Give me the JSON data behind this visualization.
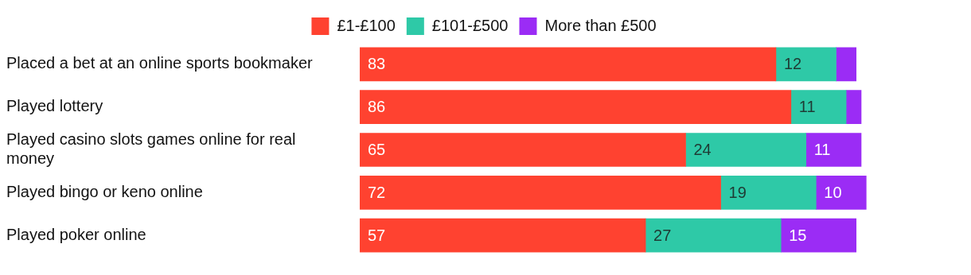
{
  "chart_data": {
    "type": "bar",
    "orientation": "horizontal",
    "stacked": true,
    "legend": "top",
    "categories": [
      "Placed a bet at an online sports bookmaker",
      "Played lottery",
      "Played casino slots games online for real money",
      "Played bingo or keno online",
      "Played poker online"
    ],
    "series": [
      {
        "name": "£1-£100",
        "color": "#ff4230",
        "values": [
          83,
          86,
          65,
          72,
          57
        ],
        "value_labels": [
          "83",
          "86",
          "65",
          "72",
          "57"
        ]
      },
      {
        "name": "£101-£500",
        "color": "#2ec9a7",
        "values": [
          12,
          11,
          24,
          19,
          27
        ],
        "value_labels": [
          "12",
          "11",
          "24",
          "19",
          "27"
        ]
      },
      {
        "name": "More than £500",
        "color": "#9b2cf5",
        "values": [
          4,
          3,
          11,
          10,
          15
        ],
        "value_labels": [
          null,
          null,
          "11",
          "10",
          "15"
        ]
      }
    ]
  }
}
